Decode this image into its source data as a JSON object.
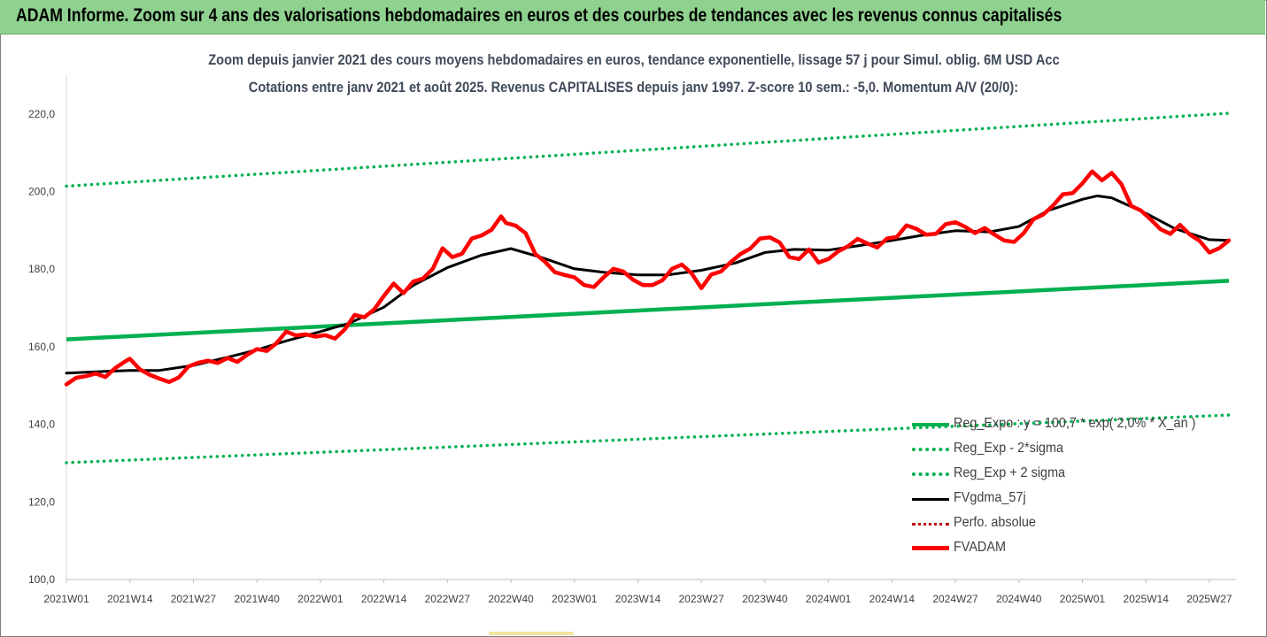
{
  "banner": {
    "title": "ADAM Informe. Zoom sur 4 ans des valorisations hebdomadaires en euros et des courbes de tendances avec les revenus connus capitalisés"
  },
  "colors": {
    "banner_bg": "#8fd18f",
    "reg_expo": "#00b050",
    "fvgdma": "#000000",
    "perfo": "#c00000",
    "fvadam": "#ff0000"
  },
  "chart_data": {
    "type": "line",
    "title": "Zoom depuis janvier 2021 des cours moyens hebdomadaires en euros, tendance exponentielle, lissage 57 j pour Simul. oblig. 6M USD Acc",
    "subtitle": "Cotations entre janv 2021 et août 2025.  Revenus CAPITALISES depuis janv 1997. Z-score 10 sem.: -5,0. Momentum A/V (20/0):",
    "ylim": [
      100,
      230
    ],
    "y_ticks": [
      "100,0",
      "120,0",
      "140,0",
      "160,0",
      "180,0",
      "200,0",
      "220,0"
    ],
    "x_ticks": [
      "2021W01",
      "2021W14",
      "2021W27",
      "2021W40",
      "2022W01",
      "2022W14",
      "2022W27",
      "2022W40",
      "2023W01",
      "2023W14",
      "2023W27",
      "2023W40",
      "2024W01",
      "2024W14",
      "2024W27",
      "2024W40",
      "2025W01",
      "2025W14",
      "2025W27"
    ],
    "legend_position": "bottom-right",
    "grid": false,
    "series": [
      {
        "name": "Reg_Expo : y = 100,7 * exp( 2,0% *  X_an )",
        "style": "solid",
        "color": "#00b050",
        "x": [
          "2021W01",
          "2025W31"
        ],
        "values": [
          161.9,
          177.0
        ]
      },
      {
        "name": "Reg_Exp - 2*sigma",
        "style": "dotted",
        "color": "#00b050",
        "x": [
          "2021W01",
          "2025W31"
        ],
        "values": [
          130.1,
          142.4
        ]
      },
      {
        "name": "Reg_Exp + 2 sigma",
        "style": "dotted",
        "color": "#00b050",
        "x": [
          "2021W01",
          "2025W31"
        ],
        "values": [
          201.4,
          220.2
        ]
      },
      {
        "name": "FVgdma_57j",
        "style": "solid",
        "color": "#000000",
        "x": [
          "2021W01",
          "2021W08",
          "2021W14",
          "2021W20",
          "2021W27",
          "2021W34",
          "2021W40",
          "2021W46",
          "2022W01",
          "2022W07",
          "2022W14",
          "2022W20",
          "2022W27",
          "2022W34",
          "2022W40",
          "2022W46",
          "2023W01",
          "2023W07",
          "2023W14",
          "2023W20",
          "2023W27",
          "2023W34",
          "2023W40",
          "2023W46",
          "2024W01",
          "2024W07",
          "2024W14",
          "2024W20",
          "2024W27",
          "2024W34",
          "2024W40",
          "2024W46",
          "2025W01",
          "2025W04",
          "2025W07",
          "2025W14",
          "2025W20",
          "2025W27",
          "2025W31"
        ],
        "values": [
          153.2,
          153.6,
          153.9,
          153.9,
          155.2,
          157.3,
          159.2,
          161.5,
          163.9,
          166.1,
          170.2,
          175.8,
          180.4,
          183.6,
          185.3,
          183.1,
          180.1,
          179.2,
          178.5,
          178.5,
          179.7,
          181.6,
          184.3,
          185.1,
          184.9,
          186.0,
          187.4,
          188.7,
          189.9,
          189.6,
          191.0,
          195.1,
          198.0,
          198.9,
          198.4,
          194.4,
          190.4,
          187.6,
          187.4
        ]
      },
      {
        "name": "Perfo. absolue",
        "style": "dotted",
        "color": "#c00000",
        "x": [],
        "values": []
      },
      {
        "name": "FVADAM",
        "style": "solid-thick",
        "color": "#ff0000",
        "x": [
          "2021W01",
          "2021W03",
          "2021W05",
          "2021W07",
          "2021W09",
          "2021W11",
          "2021W13",
          "2021W14",
          "2021W16",
          "2021W18",
          "2021W20",
          "2021W22",
          "2021W24",
          "2021W26",
          "2021W28",
          "2021W30",
          "2021W32",
          "2021W34",
          "2021W36",
          "2021W38",
          "2021W40",
          "2021W42",
          "2021W44",
          "2021W46",
          "2021W48",
          "2021W50",
          "2021W52",
          "2022W02",
          "2022W04",
          "2022W06",
          "2022W08",
          "2022W10",
          "2022W12",
          "2022W14",
          "2022W16",
          "2022W18",
          "2022W20",
          "2022W22",
          "2022W24",
          "2022W26",
          "2022W28",
          "2022W30",
          "2022W32",
          "2022W34",
          "2022W36",
          "2022W38",
          "2022W39",
          "2022W41",
          "2022W43",
          "2022W45",
          "2022W47",
          "2022W49",
          "2022W51",
          "2023W01",
          "2023W03",
          "2023W05",
          "2023W07",
          "2023W09",
          "2023W11",
          "2023W13",
          "2023W15",
          "2023W17",
          "2023W19",
          "2023W21",
          "2023W23",
          "2023W25",
          "2023W27",
          "2023W29",
          "2023W31",
          "2023W33",
          "2023W35",
          "2023W37",
          "2023W39",
          "2023W41",
          "2023W43",
          "2023W45",
          "2023W47",
          "2023W49",
          "2023W51",
          "2024W01",
          "2024W03",
          "2024W05",
          "2024W07",
          "2024W09",
          "2024W11",
          "2024W13",
          "2024W15",
          "2024W17",
          "2024W19",
          "2024W21",
          "2024W23",
          "2024W25",
          "2024W27",
          "2024W29",
          "2024W31",
          "2024W33",
          "2024W35",
          "2024W37",
          "2024W39",
          "2024W41",
          "2024W43",
          "2024W45",
          "2024W47",
          "2024W49",
          "2024W51",
          "2025W01",
          "2025W03",
          "2025W05",
          "2025W07",
          "2025W09",
          "2025W11",
          "2025W13",
          "2025W15",
          "2025W17",
          "2025W19",
          "2025W21",
          "2025W23",
          "2025W25",
          "2025W27",
          "2025W29",
          "2025W31"
        ],
        "values": [
          150.3,
          152.0,
          152.4,
          153.1,
          152.2,
          154.5,
          156.2,
          156.9,
          154.2,
          152.8,
          151.8,
          150.9,
          152.1,
          154.9,
          155.9,
          156.4,
          155.8,
          157.1,
          156.1,
          157.9,
          159.4,
          158.9,
          160.9,
          163.9,
          162.9,
          163.2,
          162.6,
          163.0,
          162.1,
          164.5,
          168.2,
          167.6,
          169.6,
          173.1,
          176.3,
          173.8,
          176.8,
          177.6,
          180.1,
          185.4,
          183.1,
          184.0,
          187.9,
          188.7,
          190.1,
          193.6,
          191.9,
          191.2,
          189.3,
          183.9,
          181.9,
          179.2,
          178.5,
          177.9,
          175.9,
          175.4,
          177.9,
          180.1,
          179.4,
          177.3,
          175.9,
          175.9,
          177.1,
          180.1,
          181.2,
          178.9,
          175.1,
          178.6,
          179.4,
          181.8,
          183.9,
          185.3,
          187.9,
          188.2,
          186.9,
          183.1,
          182.6,
          185.1,
          181.7,
          182.6,
          184.6,
          185.9,
          187.8,
          186.6,
          185.6,
          187.9,
          188.3,
          191.3,
          190.4,
          188.9,
          189.1,
          191.6,
          192.1,
          190.9,
          189.3,
          190.6,
          188.9,
          187.4,
          187.0,
          189.3,
          192.9,
          194.1,
          196.4,
          199.3,
          199.6,
          202.1,
          205.2,
          202.9,
          204.8,
          201.9,
          196.3,
          195.1,
          192.8,
          190.3,
          189.1,
          191.4,
          188.9,
          187.3,
          184.3,
          185.4,
          187.4
        ]
      }
    ]
  }
}
